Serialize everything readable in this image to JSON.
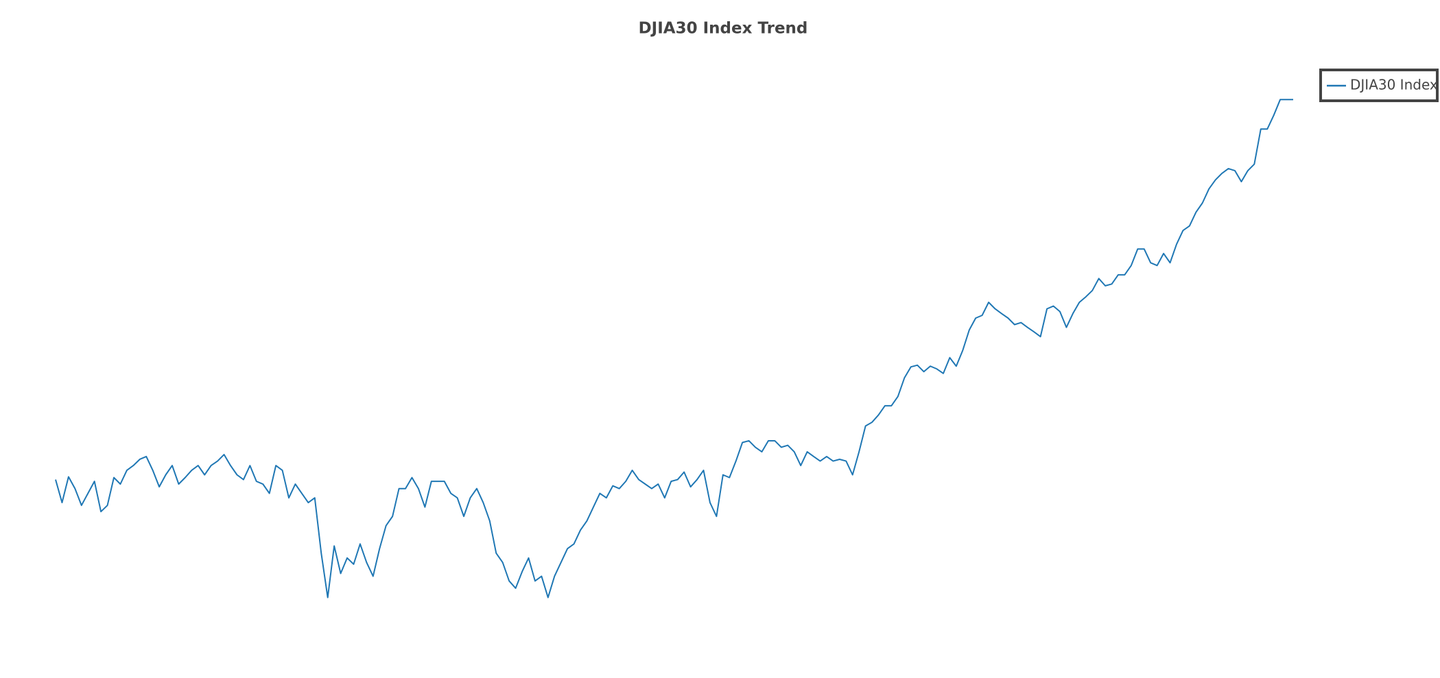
{
  "chart_data": {
    "type": "line",
    "title": "DJIA30 Index Trend",
    "ylim": [
      5000,
      30000
    ],
    "legend": "top-right",
    "series": [
      {
        "name": "DJIA30 Index",
        "color": "#1f77b4",
        "values": [
          11310,
          10390,
          11420,
          10950,
          10280,
          10760,
          11240,
          10030,
          10280,
          11390,
          11130,
          11680,
          11870,
          12120,
          12230,
          11680,
          11020,
          11500,
          11870,
          11130,
          11390,
          11680,
          11870,
          11500,
          11870,
          12050,
          12310,
          11870,
          11500,
          11310,
          11870,
          11240,
          11130,
          10760,
          11870,
          11680,
          10580,
          11130,
          10760,
          10390,
          10580,
          8370,
          6600,
          8660,
          7560,
          8180,
          7930,
          8740,
          8000,
          7450,
          8550,
          9470,
          9840,
          10950,
          10950,
          11390,
          10950,
          10210,
          11240,
          11240,
          11240,
          10760,
          10580,
          9840,
          10580,
          10950,
          10390,
          9660,
          8370,
          8000,
          7260,
          6970,
          7630,
          8180,
          7260,
          7450,
          6600,
          7450,
          8000,
          8550,
          8740,
          9290,
          9660,
          10210,
          10760,
          10580,
          11060,
          10950,
          11240,
          11680,
          11310,
          11130,
          10950,
          11130,
          10580,
          11240,
          11310,
          11610,
          11020,
          11310,
          11680,
          10390,
          9840,
          11500,
          11390,
          12050,
          12790,
          12860,
          12600,
          12420,
          12860,
          12860,
          12600,
          12680,
          12420,
          11870,
          12420,
          12230,
          12050,
          12230,
          12050,
          12120,
          12050,
          11500,
          12420,
          13450,
          13600,
          13890,
          14260,
          14260,
          14630,
          15370,
          15810,
          15880,
          15620,
          15840,
          15730,
          15550,
          16180,
          15840,
          16470,
          17280,
          17760,
          17870,
          18390,
          18130,
          17940,
          17760,
          17500,
          17580,
          17390,
          17210,
          17020,
          18130,
          18240,
          18020,
          17390,
          17940,
          18390,
          18610,
          18860,
          19340,
          19050,
          19120,
          19490,
          19490,
          19860,
          20520,
          20520,
          19970,
          19860,
          20340,
          19970,
          20710,
          21260,
          21440,
          21990,
          22360,
          22920,
          23280,
          23540,
          23730,
          23650,
          23210,
          23650,
          23910,
          25310,
          25310,
          25860,
          26490,
          26490,
          26490
        ]
      }
    ]
  }
}
